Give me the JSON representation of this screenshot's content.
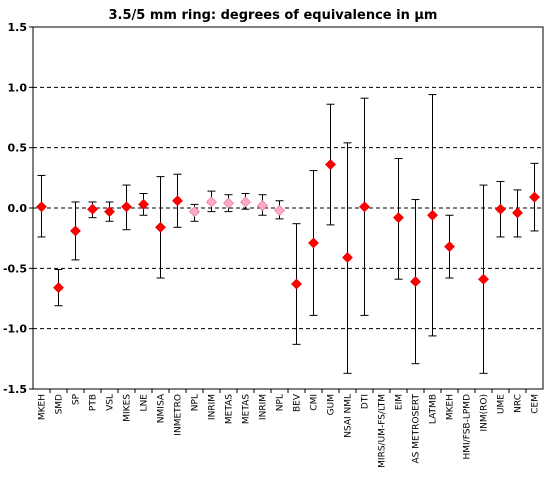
{
  "chart_data": {
    "type": "scatter",
    "title": "3.5/5 mm ring: degrees of equivalence in µm",
    "xlabel": "",
    "ylabel": "",
    "ylim": [
      -1.5,
      1.5
    ],
    "yticks": [
      "1.5",
      "1.0",
      "0.5",
      "0.0",
      "-0.5",
      "-1.0",
      "-1.5"
    ],
    "yticks_values": [
      1.5,
      1.0,
      0.5,
      0.0,
      -0.5,
      -1.0,
      -1.5
    ],
    "grid": "horizontal dashed",
    "legend": "none",
    "colors": {
      "primary_marker": "#ff0000",
      "secondary_marker": "#ffaacc",
      "error_bar": "#000000",
      "grid": "#000000"
    },
    "categories": [
      "MKEH",
      "SMD",
      "SP",
      "PTB",
      "VSL",
      "MIKES",
      "LNE",
      "NMISA",
      "INMETRO",
      "NPL",
      "INRIM",
      "METAS",
      "METAS",
      "INRIM",
      "NPL",
      "BEV",
      "CMI",
      "GUM",
      "NSAI NML",
      "DTI",
      "MIRS/UM-FS/LTM",
      "EIM",
      "AS METROSERT",
      "LATMB",
      "MKEH",
      "HMI/FSB-LPMD",
      "INM(RO)",
      "UME",
      "NRC",
      "CEM"
    ],
    "values": [
      0.01,
      -0.66,
      -0.19,
      -0.01,
      -0.03,
      0.01,
      0.03,
      -0.16,
      0.06,
      -0.03,
      0.05,
      0.04,
      0.05,
      0.02,
      -0.02,
      -0.63,
      -0.29,
      0.36,
      -0.41,
      0.01,
      null,
      -0.08,
      -0.61,
      -0.06,
      -0.32,
      null,
      -0.59,
      -0.01,
      -0.04,
      0.09
    ],
    "error_low": [
      -0.24,
      -0.81,
      -0.43,
      -0.08,
      -0.11,
      -0.18,
      -0.06,
      -0.58,
      -0.16,
      -0.11,
      -0.03,
      -0.03,
      -0.01,
      -0.06,
      -0.09,
      -1.13,
      -0.89,
      -0.14,
      -1.37,
      -0.89,
      null,
      -0.59,
      -1.29,
      -1.06,
      -0.58,
      null,
      -1.37,
      -0.24,
      -0.24,
      -0.19
    ],
    "error_high": [
      0.27,
      -0.51,
      0.05,
      0.05,
      0.05,
      0.19,
      0.12,
      0.26,
      0.28,
      0.03,
      0.14,
      0.11,
      0.12,
      0.11,
      0.06,
      -0.13,
      0.31,
      0.86,
      0.54,
      0.91,
      null,
      0.41,
      0.07,
      0.94,
      -0.06,
      null,
      0.19,
      0.22,
      0.15,
      0.37
    ],
    "marker_style": [
      "primary",
      "primary",
      "primary",
      "primary",
      "primary",
      "primary",
      "primary",
      "primary",
      "primary",
      "secondary",
      "secondary",
      "secondary",
      "secondary",
      "secondary",
      "secondary",
      "primary",
      "primary",
      "primary",
      "primary",
      "primary",
      "none",
      "primary",
      "primary",
      "primary",
      "primary",
      "none",
      "primary",
      "primary",
      "primary",
      "primary"
    ]
  }
}
